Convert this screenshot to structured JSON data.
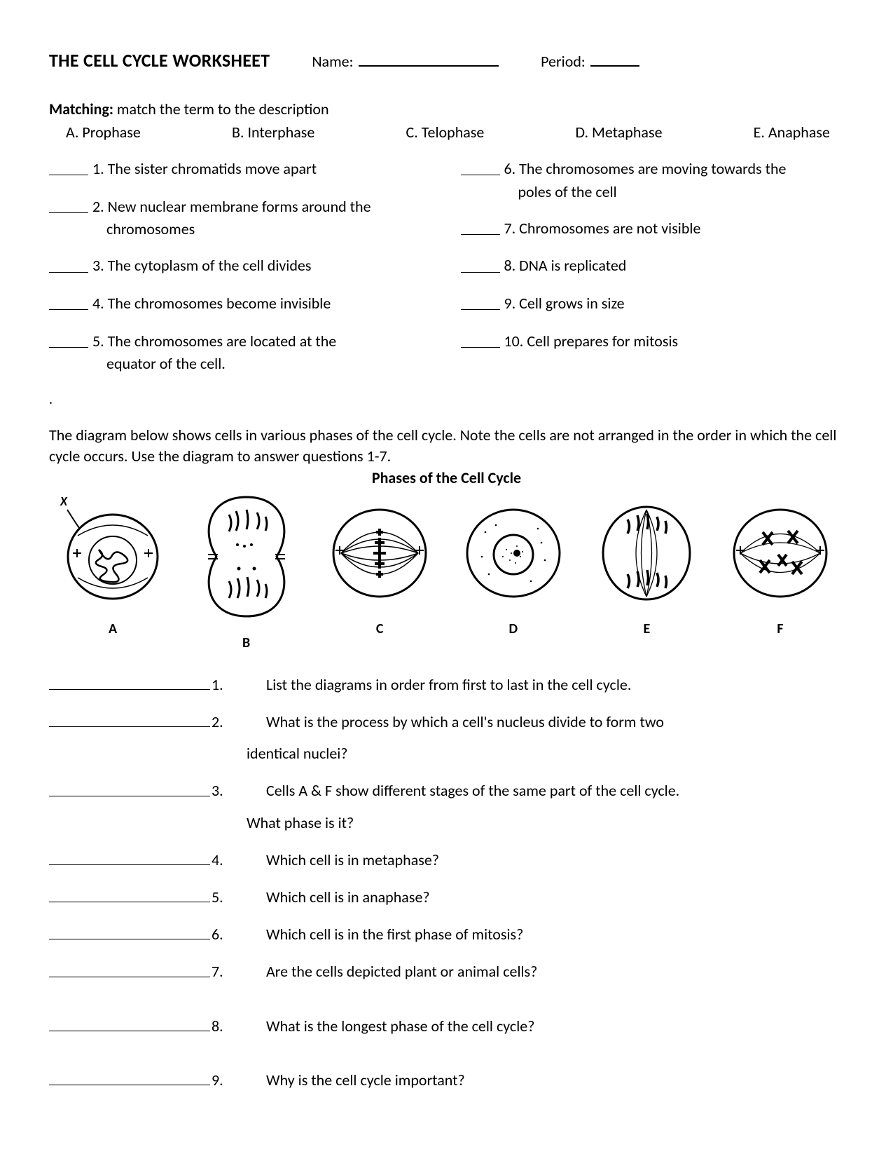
{
  "header": {
    "title": "THE CELL CYCLE WORKSHEET",
    "name_label": "Name:",
    "period_label": "Period:"
  },
  "matching": {
    "heading_bold": "Matching:",
    "heading_rest": "  match the term to the description",
    "options": [
      "A. Prophase",
      "B. Interphase",
      "C. Telophase",
      "D. Metaphase",
      "E. Anaphase"
    ],
    "left": [
      {
        "num": "1.",
        "text": "The sister chromatids move apart"
      },
      {
        "num": "2.",
        "text": "New nuclear membrane forms around the",
        "cont": "chromosomes"
      },
      {
        "num": "3.",
        "text": "The cytoplasm of the cell divides"
      },
      {
        "num": "4.",
        "text": "The chromosomes become invisible"
      },
      {
        "num": "5.",
        "text": "The chromosomes are located at the",
        "cont": "equator of the cell."
      }
    ],
    "right": [
      {
        "num": "6.",
        "text": "The chromosomes are moving towards the",
        "cont": "poles of the cell"
      },
      {
        "num": "7.",
        "text": "Chromosomes are not visible"
      },
      {
        "num": "8.",
        "text": "DNA is replicated"
      },
      {
        "num": "9.",
        "text": "Cell grows in size"
      },
      {
        "num": "10.",
        "text": "Cell prepares for mitosis"
      }
    ]
  },
  "diagram": {
    "instruction": "The diagram below shows cells in various phases of the cell cycle. Note the cells are not arranged in the order in which the cell cycle occurs. Use the diagram to answer questions 1-7.",
    "title": "Phases of the Cell Cycle",
    "labels": [
      "A",
      "B",
      "C",
      "D",
      "E",
      "F"
    ],
    "x_label": "X",
    "colors": {
      "stroke": "#000000",
      "fill": "#ffffff"
    }
  },
  "questions": [
    {
      "n": "1.",
      "t": "List the diagrams in order from first to last in the cell cycle."
    },
    {
      "n": "2.",
      "t": "What is the process by which a cell's nucleus divide to form two",
      "c": "identical nuclei?"
    },
    {
      "n": "3.",
      "t": "Cells A & F show different stages of the same part of the cell cycle.",
      "c": "What phase is it?"
    },
    {
      "n": "4.",
      "t": "Which cell is in metaphase?"
    },
    {
      "n": "5.",
      "t": "Which cell is in anaphase?"
    },
    {
      "n": "6.",
      "t": "Which cell is in the first phase of mitosis?"
    },
    {
      "n": "7.",
      "t": "Are the cells depicted plant or animal cells?"
    },
    {
      "gap": true
    },
    {
      "n": "8.",
      "t": "What is the longest phase of the cell cycle?"
    },
    {
      "gap": true
    },
    {
      "n": "9.",
      "t": "Why is the cell cycle important?",
      "loose": true
    }
  ]
}
